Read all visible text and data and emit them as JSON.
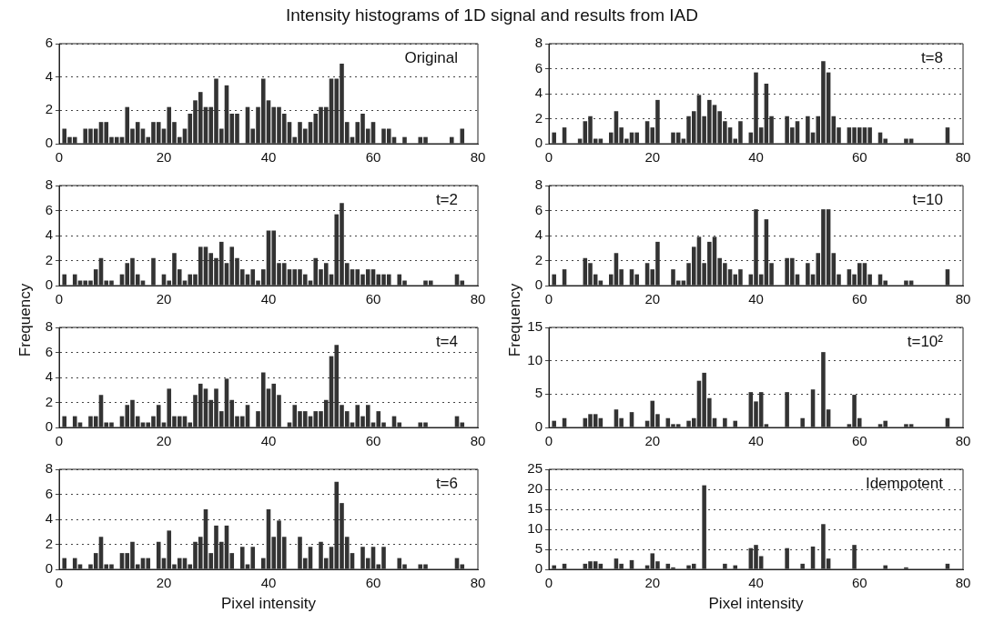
{
  "chart_data": [
    {
      "type": "histogram",
      "title": "Intensity histograms of 1D signal and results from IAD",
      "annotations": [
        "Original"
      ],
      "color": "#333333",
      "bins": [
        0.5,
        1.5,
        2.5,
        3.5,
        4.5,
        5.5,
        6.5,
        7.5,
        8.5,
        9.5,
        10.5,
        11.5,
        12.5,
        13.5,
        14.5,
        15.5,
        16.5,
        17.5,
        18.5,
        19.5,
        20.5,
        21.5,
        22.5,
        23.5,
        24.5,
        25.5,
        26.5,
        27.5,
        28.5,
        29.5,
        30.5,
        31.5,
        32.5,
        33.5,
        34.5,
        35.5,
        36.5,
        37.5,
        38.5,
        39.5,
        40.5,
        41.5,
        42.5,
        43.5,
        44.5,
        45.5,
        46.5,
        47.5,
        48.5,
        49.5,
        50.5,
        51.5,
        52.5,
        53.5,
        54.5,
        55.5,
        56.5,
        57.5,
        58.5,
        59.5,
        60.5,
        61.5,
        62.5,
        63.5,
        64.5,
        65.5,
        66.5,
        67.5,
        68.5,
        69.5,
        70.5,
        71.5,
        72.5,
        73.5,
        74.5,
        75.5,
        76.5,
        77.5
      ],
      "values": [
        0.9,
        0.4,
        0.4,
        0,
        0.9,
        0.9,
        0.9,
        1.3,
        1.3,
        0.4,
        0.4,
        0.4,
        2.2,
        0.9,
        1.3,
        0.9,
        0.4,
        1.3,
        1.3,
        0.9,
        2.2,
        1.3,
        0.4,
        0.9,
        1.8,
        2.6,
        3.1,
        2.2,
        2.2,
        3.9,
        0.9,
        3.5,
        1.8,
        1.8,
        0,
        2.2,
        0.9,
        2.2,
        3.9,
        2.6,
        2.2,
        2.2,
        1.8,
        1.3,
        0.4,
        1.3,
        0.9,
        1.3,
        1.8,
        2.2,
        2.2,
        3.9,
        3.9,
        4.8,
        1.3,
        0.4,
        1.3,
        1.8,
        0.9,
        1.3,
        0,
        0.9,
        0.9,
        0.4,
        0,
        0.4,
        0,
        0,
        0.4,
        0.4,
        0,
        0,
        0,
        0,
        0.4,
        0,
        0.9
      ],
      "xlim": [
        0,
        80
      ],
      "xticks": [
        0,
        20,
        40,
        60,
        80
      ],
      "ylim": [
        0,
        6
      ],
      "yticks": [
        0,
        2,
        4,
        6
      ],
      "grid": "y"
    },
    {
      "type": "histogram",
      "ylabel": "Frequency",
      "annotations": [
        "t=2"
      ],
      "color": "#333333",
      "bins": [
        0.5,
        1.5,
        2.5,
        3.5,
        4.5,
        5.5,
        6.5,
        7.5,
        8.5,
        9.5,
        10.5,
        11.5,
        12.5,
        13.5,
        14.5,
        15.5,
        16.5,
        17.5,
        18.5,
        19.5,
        20.5,
        21.5,
        22.5,
        23.5,
        24.5,
        25.5,
        26.5,
        27.5,
        28.5,
        29.5,
        30.5,
        31.5,
        32.5,
        33.5,
        34.5,
        35.5,
        36.5,
        37.5,
        38.5,
        39.5,
        40.5,
        41.5,
        42.5,
        43.5,
        44.5,
        45.5,
        46.5,
        47.5,
        48.5,
        49.5,
        50.5,
        51.5,
        52.5,
        53.5,
        54.5,
        55.5,
        56.5,
        57.5,
        58.5,
        59.5,
        60.5,
        61.5,
        62.5,
        63.5,
        64.5,
        65.5,
        66.5,
        67.5,
        68.5,
        69.5,
        70.5,
        71.5,
        72.5,
        73.5,
        74.5,
        75.5,
        76.5,
        77.5
      ],
      "values": [
        0.9,
        0,
        0.9,
        0.4,
        0.4,
        0.4,
        1.3,
        2.2,
        0.4,
        0.4,
        0,
        0.9,
        1.8,
        2.2,
        0.9,
        0.4,
        0,
        2.2,
        0,
        0.9,
        0.4,
        2.6,
        1.3,
        0.4,
        0.9,
        0.9,
        3.1,
        3.1,
        2.6,
        2.2,
        3.5,
        1.8,
        3.1,
        2.2,
        1.3,
        0.9,
        1.3,
        0.4,
        1.3,
        4.4,
        4.4,
        1.8,
        1.8,
        1.3,
        1.3,
        1.3,
        0.9,
        0.4,
        2.2,
        1.3,
        1.8,
        0.9,
        5.7,
        6.6,
        1.8,
        1.3,
        1.3,
        0.9,
        1.3,
        1.3,
        0.9,
        0.9,
        0.9,
        0,
        0.9,
        0.4,
        0,
        0,
        0,
        0.4,
        0.4,
        0,
        0,
        0,
        0,
        0.9,
        0.4
      ],
      "xlim": [
        0,
        80
      ],
      "xticks": [
        0,
        20,
        40,
        60,
        80
      ],
      "ylim": [
        0,
        8
      ],
      "yticks": [
        0,
        2,
        4,
        6,
        8
      ],
      "grid": "y"
    },
    {
      "type": "histogram",
      "annotations": [
        "t=4"
      ],
      "color": "#333333",
      "bins": [
        0.5,
        1.5,
        2.5,
        3.5,
        4.5,
        5.5,
        6.5,
        7.5,
        8.5,
        9.5,
        10.5,
        11.5,
        12.5,
        13.5,
        14.5,
        15.5,
        16.5,
        17.5,
        18.5,
        19.5,
        20.5,
        21.5,
        22.5,
        23.5,
        24.5,
        25.5,
        26.5,
        27.5,
        28.5,
        29.5,
        30.5,
        31.5,
        32.5,
        33.5,
        34.5,
        35.5,
        36.5,
        37.5,
        38.5,
        39.5,
        40.5,
        41.5,
        42.5,
        43.5,
        44.5,
        45.5,
        46.5,
        47.5,
        48.5,
        49.5,
        50.5,
        51.5,
        52.5,
        53.5,
        54.5,
        55.5,
        56.5,
        57.5,
        58.5,
        59.5,
        60.5,
        61.5,
        62.5,
        63.5,
        64.5,
        65.5,
        66.5,
        67.5,
        68.5,
        69.5,
        70.5,
        71.5,
        72.5,
        73.5,
        74.5,
        75.5,
        76.5,
        77.5
      ],
      "values": [
        0.9,
        0,
        0.9,
        0.4,
        0,
        0.9,
        0.9,
        2.6,
        0.4,
        0.4,
        0,
        0.9,
        1.8,
        2.2,
        0.9,
        0.4,
        0.4,
        0.9,
        1.8,
        0.4,
        3.1,
        0.9,
        0.9,
        0.9,
        0.4,
        2.6,
        3.5,
        3.1,
        2.2,
        3.1,
        1.3,
        3.9,
        2.2,
        0.9,
        0.9,
        1.8,
        0,
        1.3,
        4.4,
        3.1,
        3.5,
        2.6,
        0,
        0.4,
        1.8,
        1.3,
        1.3,
        0.9,
        1.3,
        1.3,
        2.2,
        5.7,
        6.6,
        1.8,
        1.3,
        0.4,
        1.8,
        0.9,
        1.8,
        0.4,
        1.3,
        0.4,
        0,
        0.9,
        0.4,
        0,
        0,
        0,
        0.4,
        0.4,
        0,
        0,
        0,
        0,
        0,
        0.9,
        0.4
      ],
      "xlim": [
        0,
        80
      ],
      "xticks": [
        0,
        20,
        40,
        60,
        80
      ],
      "ylim": [
        0,
        8
      ],
      "yticks": [
        0,
        2,
        4,
        6,
        8
      ],
      "grid": "y"
    },
    {
      "type": "histogram",
      "xlabel": "Pixel intensity",
      "annotations": [
        "t=6"
      ],
      "color": "#333333",
      "bins": [
        0.5,
        1.5,
        2.5,
        3.5,
        4.5,
        5.5,
        6.5,
        7.5,
        8.5,
        9.5,
        10.5,
        11.5,
        12.5,
        13.5,
        14.5,
        15.5,
        16.5,
        17.5,
        18.5,
        19.5,
        20.5,
        21.5,
        22.5,
        23.5,
        24.5,
        25.5,
        26.5,
        27.5,
        28.5,
        29.5,
        30.5,
        31.5,
        32.5,
        33.5,
        34.5,
        35.5,
        36.5,
        37.5,
        38.5,
        39.5,
        40.5,
        41.5,
        42.5,
        43.5,
        44.5,
        45.5,
        46.5,
        47.5,
        48.5,
        49.5,
        50.5,
        51.5,
        52.5,
        53.5,
        54.5,
        55.5,
        56.5,
        57.5,
        58.5,
        59.5,
        60.5,
        61.5,
        62.5,
        63.5,
        64.5,
        65.5,
        66.5,
        67.5,
        68.5,
        69.5,
        70.5,
        71.5,
        72.5,
        73.5,
        74.5,
        75.5,
        76.5,
        77.5
      ],
      "values": [
        0.9,
        0,
        0.9,
        0.4,
        0,
        0.4,
        1.3,
        2.6,
        0.4,
        0.4,
        0,
        1.3,
        1.3,
        2.2,
        0.4,
        0.9,
        0.9,
        0,
        2.2,
        0.9,
        3.1,
        0.4,
        0.9,
        0.9,
        0.4,
        2.2,
        2.6,
        4.8,
        1.3,
        3.5,
        2.2,
        3.5,
        1.3,
        0,
        1.8,
        0.4,
        1.8,
        0,
        0.9,
        4.8,
        2.6,
        3.9,
        2.6,
        0,
        0,
        2.6,
        0.9,
        1.8,
        0,
        2.2,
        0.9,
        1.8,
        7,
        5.3,
        2.6,
        1.3,
        0,
        1.8,
        0.9,
        1.8,
        0.4,
        1.8,
        0,
        0,
        0.9,
        0.4,
        0,
        0,
        0.4,
        0.4,
        0,
        0,
        0,
        0,
        0,
        0.9,
        0.4
      ],
      "xlim": [
        0,
        80
      ],
      "xticks": [
        0,
        20,
        40,
        60,
        80
      ],
      "ylim": [
        0,
        8
      ],
      "yticks": [
        0,
        2,
        4,
        6,
        8
      ],
      "grid": "y"
    },
    {
      "type": "histogram",
      "annotations": [
        "t=8"
      ],
      "color": "#333333",
      "bins": [
        0.5,
        1.5,
        2.5,
        3.5,
        4.5,
        5.5,
        6.5,
        7.5,
        8.5,
        9.5,
        10.5,
        11.5,
        12.5,
        13.5,
        14.5,
        15.5,
        16.5,
        17.5,
        18.5,
        19.5,
        20.5,
        21.5,
        22.5,
        23.5,
        24.5,
        25.5,
        26.5,
        27.5,
        28.5,
        29.5,
        30.5,
        31.5,
        32.5,
        33.5,
        34.5,
        35.5,
        36.5,
        37.5,
        38.5,
        39.5,
        40.5,
        41.5,
        42.5,
        43.5,
        44.5,
        45.5,
        46.5,
        47.5,
        48.5,
        49.5,
        50.5,
        51.5,
        52.5,
        53.5,
        54.5,
        55.5,
        56.5,
        57.5,
        58.5,
        59.5,
        60.5,
        61.5,
        62.5,
        63.5,
        64.5,
        65.5,
        66.5,
        67.5,
        68.5,
        69.5,
        70.5,
        71.5,
        72.5,
        73.5,
        74.5,
        75.5,
        76.5,
        77.5
      ],
      "values": [
        0.9,
        0,
        1.3,
        0,
        0,
        0.4,
        1.8,
        2.2,
        0.4,
        0.4,
        0,
        0.9,
        2.6,
        1.3,
        0.4,
        0.9,
        0.9,
        0,
        1.8,
        1.3,
        3.5,
        0,
        0,
        0.9,
        0.9,
        0.4,
        2.2,
        2.6,
        3.9,
        2.2,
        3.5,
        3.1,
        2.6,
        1.8,
        1.3,
        0.4,
        1.8,
        0,
        0.9,
        5.7,
        1.3,
        4.8,
        2.2,
        0,
        0,
        2.2,
        1.3,
        1.8,
        0,
        2.2,
        0.9,
        2.2,
        6.6,
        5.7,
        2.2,
        1.3,
        0,
        1.3,
        1.3,
        1.3,
        1.3,
        1.3,
        0,
        0.9,
        0.4,
        0,
        0,
        0,
        0.4,
        0.4,
        0,
        0,
        0,
        0,
        0,
        0,
        1.3
      ],
      "xlim": [
        0,
        80
      ],
      "xticks": [
        0,
        20,
        40,
        60,
        80
      ],
      "ylim": [
        0,
        8
      ],
      "yticks": [
        0,
        2,
        4,
        6,
        8
      ],
      "grid": "y"
    },
    {
      "type": "histogram",
      "ylabel": "Frequency",
      "annotations": [
        "t=10"
      ],
      "color": "#333333",
      "bins": [
        0.5,
        1.5,
        2.5,
        3.5,
        4.5,
        5.5,
        6.5,
        7.5,
        8.5,
        9.5,
        10.5,
        11.5,
        12.5,
        13.5,
        14.5,
        15.5,
        16.5,
        17.5,
        18.5,
        19.5,
        20.5,
        21.5,
        22.5,
        23.5,
        24.5,
        25.5,
        26.5,
        27.5,
        28.5,
        29.5,
        30.5,
        31.5,
        32.5,
        33.5,
        34.5,
        35.5,
        36.5,
        37.5,
        38.5,
        39.5,
        40.5,
        41.5,
        42.5,
        43.5,
        44.5,
        45.5,
        46.5,
        47.5,
        48.5,
        49.5,
        50.5,
        51.5,
        52.5,
        53.5,
        54.5,
        55.5,
        56.5,
        57.5,
        58.5,
        59.5,
        60.5,
        61.5,
        62.5,
        63.5,
        64.5,
        65.5,
        66.5,
        67.5,
        68.5,
        69.5,
        70.5,
        71.5,
        72.5,
        73.5,
        74.5,
        75.5,
        76.5,
        77.5
      ],
      "values": [
        0.9,
        0,
        1.3,
        0,
        0,
        0,
        2.2,
        1.8,
        0.9,
        0.4,
        0,
        0.9,
        2.6,
        1.3,
        0,
        1.3,
        0.9,
        0,
        1.8,
        1.3,
        3.5,
        0,
        0,
        1.3,
        0.4,
        0.4,
        1.8,
        3.1,
        3.9,
        1.8,
        3.5,
        3.9,
        2.2,
        1.8,
        1.3,
        0.9,
        1.3,
        0,
        0.9,
        6.1,
        0.9,
        5.3,
        1.8,
        0,
        0,
        2.2,
        2.2,
        0.9,
        0,
        1.8,
        0.9,
        2.6,
        6.1,
        6.1,
        2.6,
        0.9,
        0,
        1.3,
        0.9,
        1.8,
        1.8,
        0.9,
        0,
        0.9,
        0.4,
        0,
        0,
        0,
        0.4,
        0.4,
        0,
        0,
        0,
        0,
        0,
        0,
        1.3
      ],
      "xlim": [
        0,
        80
      ],
      "xticks": [
        0,
        20,
        40,
        60,
        80
      ],
      "ylim": [
        0,
        8
      ],
      "yticks": [
        0,
        2,
        4,
        6,
        8
      ],
      "grid": "y"
    },
    {
      "type": "histogram",
      "annotations": [
        "t=10²"
      ],
      "color": "#333333",
      "bins": [
        0.5,
        1.5,
        2.5,
        3.5,
        4.5,
        5.5,
        6.5,
        7.5,
        8.5,
        9.5,
        10.5,
        11.5,
        12.5,
        13.5,
        14.5,
        15.5,
        16.5,
        17.5,
        18.5,
        19.5,
        20.5,
        21.5,
        22.5,
        23.5,
        24.5,
        25.5,
        26.5,
        27.5,
        28.5,
        29.5,
        30.5,
        31.5,
        32.5,
        33.5,
        34.5,
        35.5,
        36.5,
        37.5,
        38.5,
        39.5,
        40.5,
        41.5,
        42.5,
        43.5,
        44.5,
        45.5,
        46.5,
        47.5,
        48.5,
        49.5,
        50.5,
        51.5,
        52.5,
        53.5,
        54.5,
        55.5,
        56.5,
        57.5,
        58.5,
        59.5,
        60.5,
        61.5,
        62.5,
        63.5,
        64.5,
        65.5,
        66.5,
        67.5,
        68.5,
        69.5,
        70.5,
        71.5,
        72.5,
        73.5,
        74.5,
        75.5,
        76.5,
        77.5
      ],
      "values": [
        1,
        0,
        1.4,
        0,
        0,
        0,
        1.4,
        2,
        2,
        1.4,
        0,
        0,
        2.7,
        1.4,
        0,
        2.3,
        0,
        0,
        1,
        4,
        2,
        0,
        1.4,
        0.5,
        0.5,
        0,
        1,
        1.4,
        7,
        8.2,
        4.4,
        1.4,
        0,
        1.4,
        0,
        1,
        0,
        0,
        5.3,
        3.9,
        5.3,
        0.5,
        0,
        0,
        0,
        5.3,
        0,
        0,
        1.4,
        0,
        5.7,
        0,
        11.3,
        2.7,
        0,
        0,
        0,
        0.5,
        4.9,
        1.4,
        0,
        0,
        0,
        0.5,
        1,
        0,
        0,
        0,
        0.5,
        0.5,
        0,
        0,
        0,
        0,
        0,
        0,
        1.4
      ],
      "xlim": [
        0,
        80
      ],
      "xticks": [
        0,
        20,
        40,
        60,
        80
      ],
      "ylim": [
        0,
        15
      ],
      "yticks": [
        0,
        5,
        10,
        15
      ],
      "grid": "y"
    },
    {
      "type": "histogram",
      "xlabel": "Pixel intensity",
      "annotations": [
        "Idempotent"
      ],
      "color": "#333333",
      "bins": [
        0.5,
        1.5,
        2.5,
        3.5,
        4.5,
        5.5,
        6.5,
        7.5,
        8.5,
        9.5,
        10.5,
        11.5,
        12.5,
        13.5,
        14.5,
        15.5,
        16.5,
        17.5,
        18.5,
        19.5,
        20.5,
        21.5,
        22.5,
        23.5,
        24.5,
        25.5,
        26.5,
        27.5,
        28.5,
        29.5,
        30.5,
        31.5,
        32.5,
        33.5,
        34.5,
        35.5,
        36.5,
        37.5,
        38.5,
        39.5,
        40.5,
        41.5,
        42.5,
        43.5,
        44.5,
        45.5,
        46.5,
        47.5,
        48.5,
        49.5,
        50.5,
        51.5,
        52.5,
        53.5,
        54.5,
        55.5,
        56.5,
        57.5,
        58.5,
        59.5,
        60.5,
        61.5,
        62.5,
        63.5,
        64.5,
        65.5,
        66.5,
        67.5,
        68.5,
        69.5,
        70.5,
        71.5,
        72.5,
        73.5,
        74.5,
        75.5,
        76.5,
        77.5
      ],
      "values": [
        1,
        0,
        1.4,
        0,
        0,
        0,
        1.4,
        2,
        2,
        1.4,
        0,
        0,
        2.7,
        1.4,
        0,
        2.3,
        0,
        0,
        1,
        4,
        2,
        0,
        1.4,
        0.5,
        null,
        0,
        1,
        1.4,
        0,
        21,
        0,
        0,
        0,
        1.4,
        0,
        1,
        0,
        0,
        5.3,
        6.1,
        3.3,
        null,
        0,
        0,
        0,
        5.3,
        0,
        0,
        1.4,
        0,
        5.7,
        0,
        11.3,
        2.7,
        0,
        0,
        0,
        null,
        6.1,
        0,
        0,
        0,
        0,
        null,
        1,
        0,
        0,
        0,
        0.5,
        null,
        0,
        0,
        0,
        0,
        0,
        0,
        1.4
      ],
      "xlim": [
        0,
        80
      ],
      "xticks": [
        0,
        20,
        40,
        60,
        80
      ],
      "ylim": [
        0,
        25
      ],
      "yticks": [
        0,
        5,
        10,
        15,
        20,
        25
      ],
      "grid": "y"
    }
  ]
}
